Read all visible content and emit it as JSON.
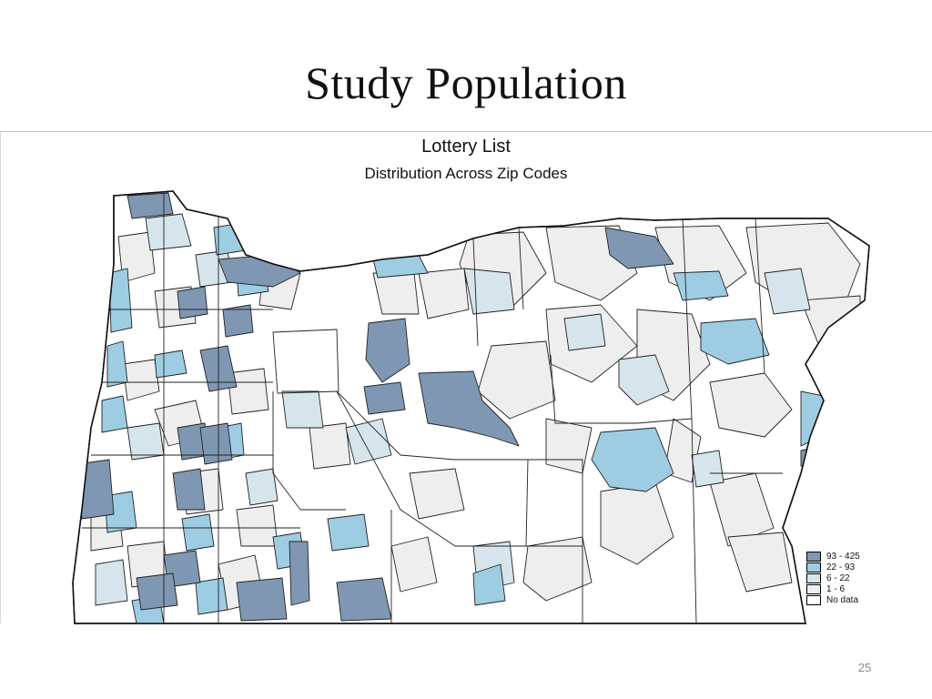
{
  "slide": {
    "title": "Study Population",
    "page_number": "25"
  },
  "map": {
    "title": "Lottery List",
    "subtitle": "Distribution Across Zip Codes",
    "legend": [
      {
        "label": "93 - 425",
        "color": "#7f97b2"
      },
      {
        "label": "22 - 93",
        "color": "#9ecde3"
      },
      {
        "label": "6 - 22",
        "color": "#d6e5ec"
      },
      {
        "label": "1 - 6",
        "color": "#eeeeee"
      },
      {
        "label": "No data",
        "color": "#ffffff"
      }
    ]
  }
}
